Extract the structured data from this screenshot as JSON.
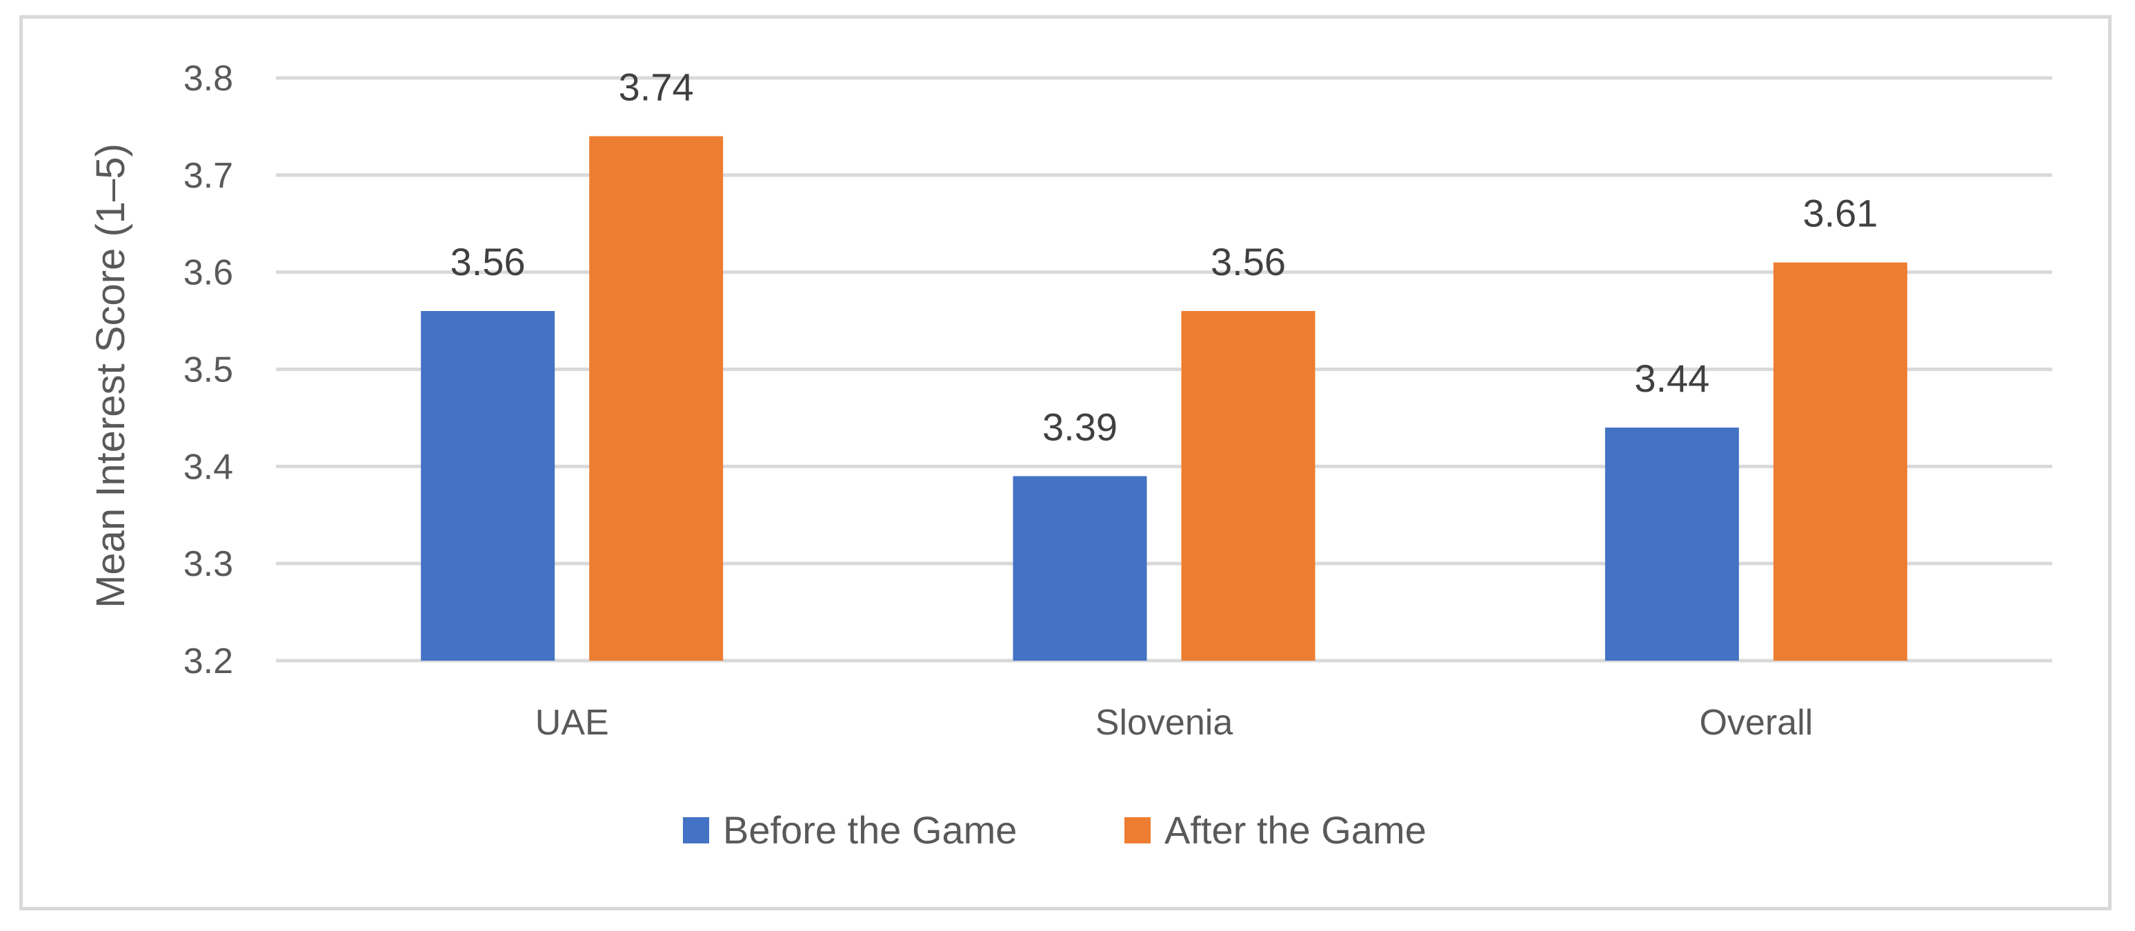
{
  "chart_data": {
    "type": "bar",
    "title": "",
    "xlabel": "",
    "ylabel": "Mean Interest Score (1–5)",
    "ylim": [
      3.2,
      3.8
    ],
    "yticks": [
      "3.2",
      "3.3",
      "3.4",
      "3.5",
      "3.6",
      "3.7",
      "3.8"
    ],
    "grid": true,
    "legend_position": "bottom",
    "categories": [
      "UAE",
      "Slovenia",
      "Overall"
    ],
    "series": [
      {
        "name": "Before the Game",
        "color": "#4472C4",
        "values": [
          3.56,
          3.39,
          3.44
        ],
        "labels": [
          "3.56",
          "3.39",
          "3.44"
        ]
      },
      {
        "name": "After the Game",
        "color": "#ED7D31",
        "values": [
          3.74,
          3.56,
          3.61
        ],
        "labels": [
          "3.74",
          "3.56",
          "3.61"
        ]
      }
    ]
  }
}
